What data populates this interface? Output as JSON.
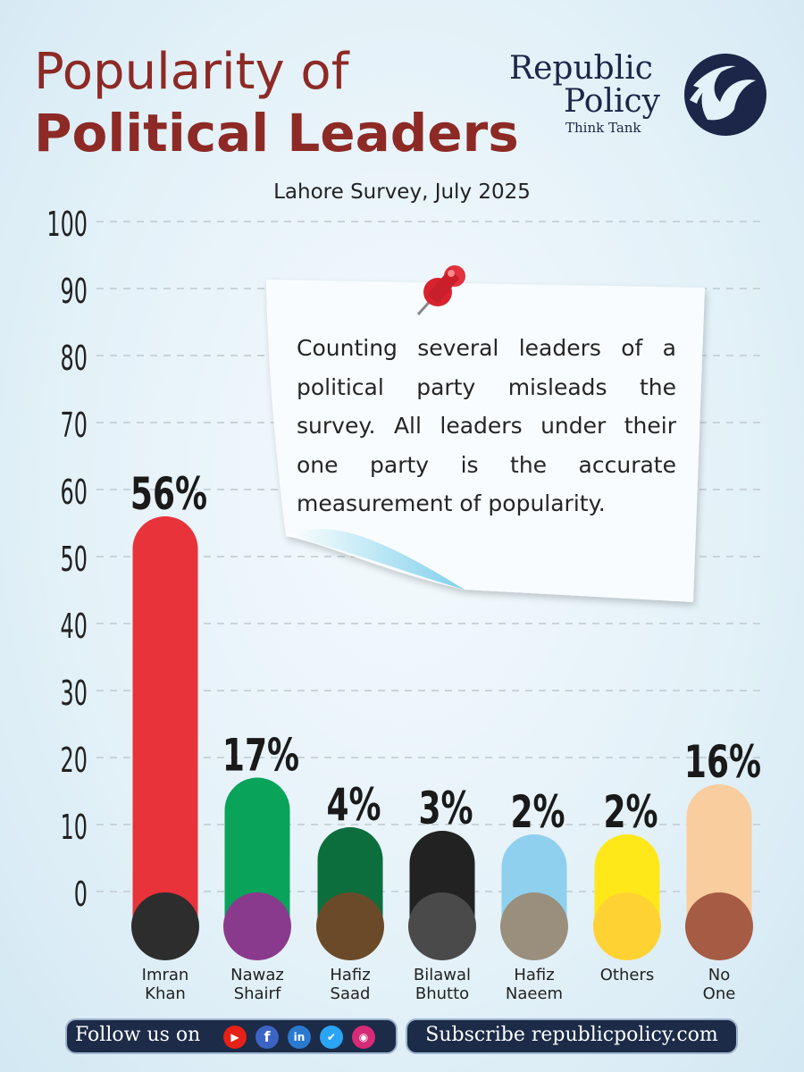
{
  "header": {
    "title_line1": "Popularity of",
    "title_line2": "Political Leaders",
    "brand_line1": "Republic",
    "brand_line2": "Policy",
    "brand_tagline": "Think Tank",
    "subtitle": "Lahore Survey, July 2025"
  },
  "note": {
    "text": "Counting several leaders of a political party misleads the survey. All leaders under their one party is the accurate measurement of popularity."
  },
  "chart_data": {
    "type": "bar",
    "ylim": [
      0,
      100
    ],
    "yticks": [
      0,
      10,
      20,
      30,
      40,
      50,
      60,
      70,
      80,
      90,
      100
    ],
    "grid": true,
    "categories": [
      {
        "label1": "Imran",
        "label2": "Khan",
        "value": 56,
        "value_label": "56%",
        "color": "#e8333a",
        "avatar_color": "#2d2d2d"
      },
      {
        "label1": "Nawaz",
        "label2": "Shairf",
        "value": 17,
        "value_label": "17%",
        "color": "#0aa35a",
        "avatar_color": "#8a3a8c"
      },
      {
        "label1": "Hafiz",
        "label2": "Saad",
        "value": 4,
        "value_label": "4%",
        "color": "#0c6e3c",
        "avatar_color": "#6b4a2a"
      },
      {
        "label1": "Bilawal",
        "label2": "Bhutto",
        "value": 3,
        "value_label": "3%",
        "color": "#222222",
        "avatar_color": "#4a4a4a"
      },
      {
        "label1": "Hafiz",
        "label2": "Naeem",
        "value": 2,
        "value_label": "2%",
        "color": "#8fd0ee",
        "avatar_color": "#9a8f7c"
      },
      {
        "label1": "Others",
        "label2": "",
        "value": 2,
        "value_label": "2%",
        "color": "#ffe81a",
        "avatar_color": "#ffd234"
      },
      {
        "label1": "No",
        "label2": "One",
        "value": 16,
        "value_label": "16%",
        "color": "#f9cd9e",
        "avatar_color": "#a65b44"
      }
    ]
  },
  "footer": {
    "follow_label": "Follow us on",
    "social_icons": [
      "youtube-icon",
      "facebook-icon",
      "linkedin-icon",
      "twitter-icon",
      "instagram-icon"
    ],
    "subscribe_label": "Subscribe republicpolicy.com"
  }
}
